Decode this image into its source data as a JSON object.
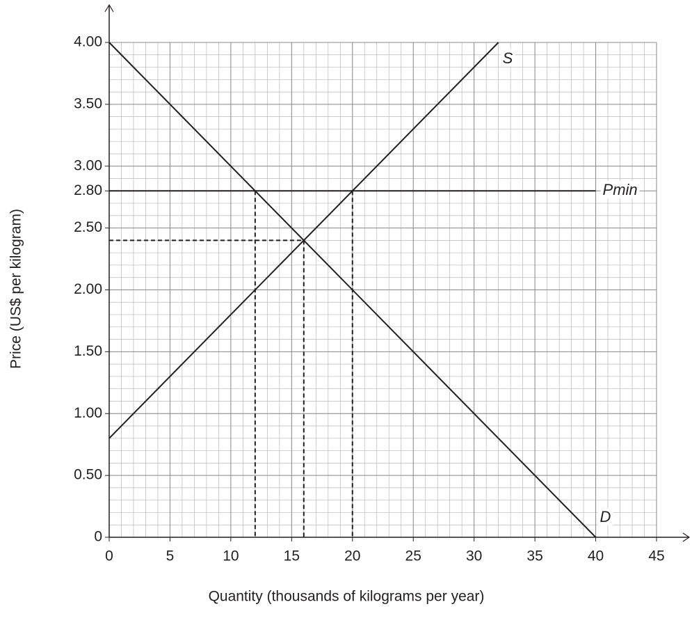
{
  "chart_data": {
    "type": "line",
    "x_label": "Quantity (thousands of kilograms per year)",
    "y_label": "Price (US$ per kilogram)",
    "xlim": [
      0,
      45
    ],
    "ylim": [
      0,
      4
    ],
    "xticks": [
      0,
      5,
      10,
      15,
      20,
      25,
      30,
      35,
      40,
      45
    ],
    "yticks": [
      0,
      {
        "value": 0.5,
        "label": "0.50"
      },
      {
        "value": 1,
        "label": "1.00"
      },
      {
        "value": 1.5,
        "label": "1.50"
      },
      {
        "value": 2,
        "label": "2.00"
      },
      {
        "value": 2.5,
        "label": "2.50"
      },
      {
        "value": 2.8,
        "label": "2.80"
      },
      {
        "value": 3,
        "label": "3.00"
      },
      {
        "value": 3.5,
        "label": "3.50"
      },
      {
        "value": 4,
        "label": "4.00"
      }
    ],
    "grid": true,
    "minor_grid": true,
    "series": [
      {
        "name": "S",
        "color": "#231f20",
        "x": [
          0,
          32
        ],
        "values": [
          0.8,
          4
        ]
      },
      {
        "name": "D",
        "color": "#231f20",
        "x": [
          0,
          40
        ],
        "values": [
          4,
          0
        ]
      },
      {
        "name": "Pmin",
        "color": "#231f20",
        "x": [
          0,
          40
        ],
        "values": [
          2.8,
          2.8
        ]
      }
    ],
    "reference_lines": [
      {
        "x": [
          12,
          12
        ],
        "values": [
          2.8,
          0
        ]
      },
      {
        "x": [
          16,
          16
        ],
        "values": [
          2.4,
          0
        ]
      },
      {
        "x": [
          20,
          20
        ],
        "values": [
          2.8,
          0
        ]
      },
      {
        "x": [
          0,
          16
        ],
        "values": [
          2.4,
          2.4
        ]
      }
    ]
  }
}
